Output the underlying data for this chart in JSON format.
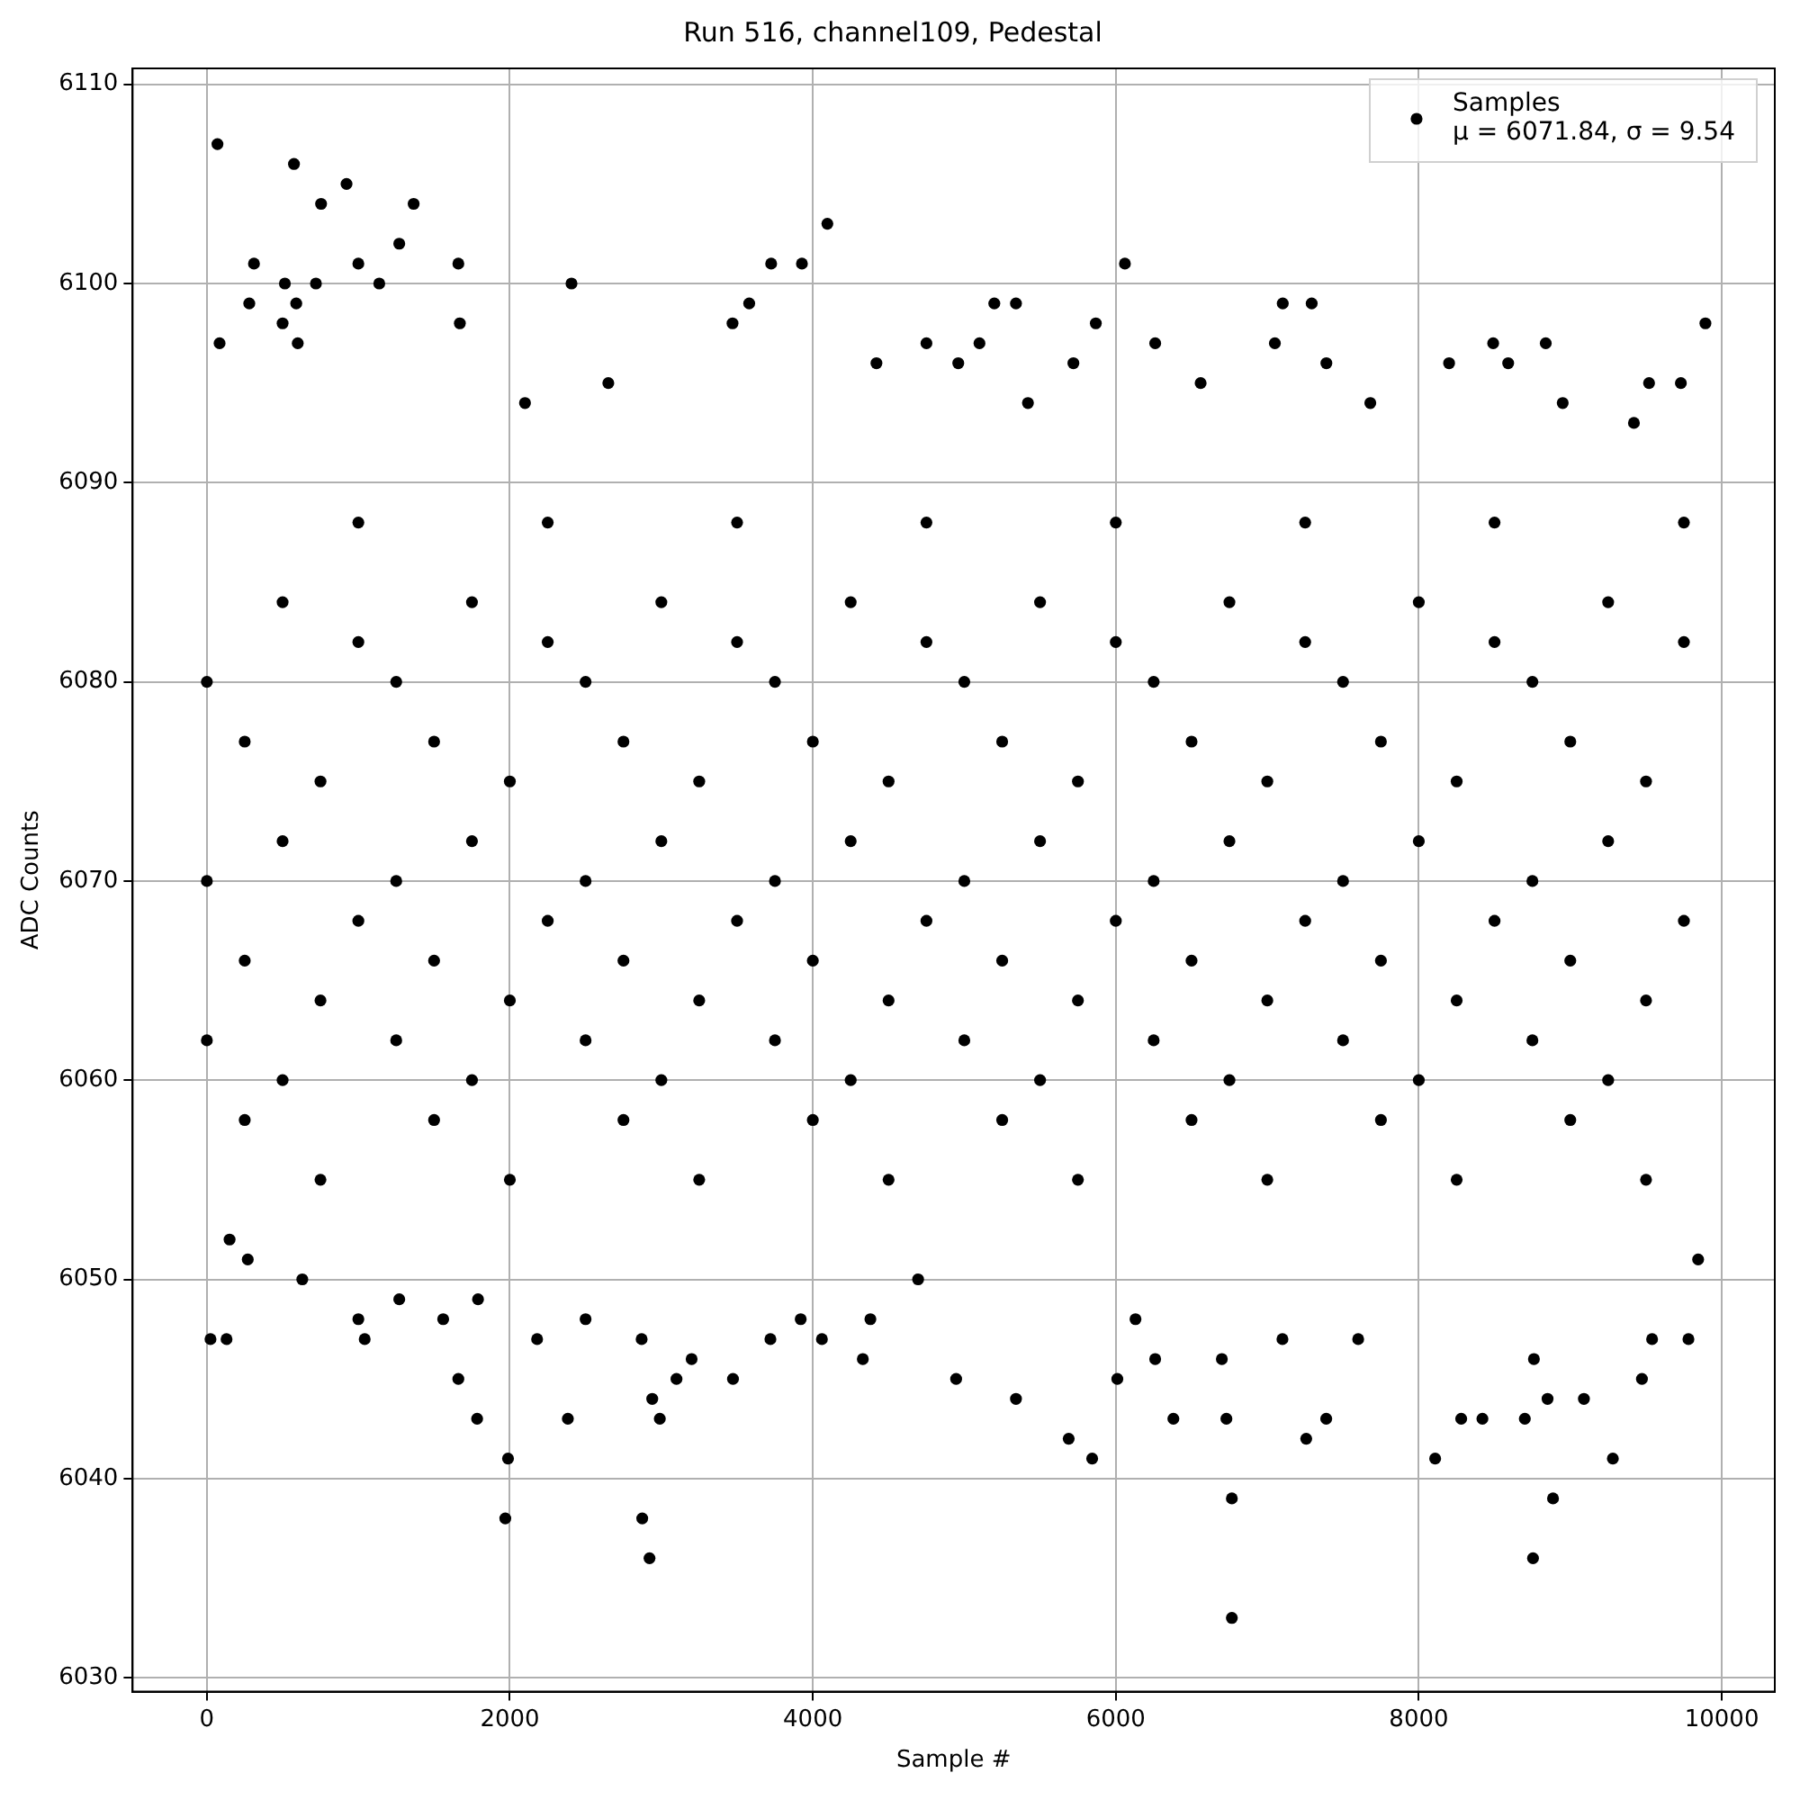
{
  "chart_data": {
    "type": "scatter",
    "title": "Run 516, channel109, Pedestal",
    "xlabel": "Sample #",
    "ylabel": "ADC Counts",
    "xlim": [
      -490,
      10350
    ],
    "xticks": [
      0,
      2000,
      4000,
      6000,
      8000,
      10000
    ],
    "ylim": [
      6029.3,
      6110.8
    ],
    "yticks": [
      6030,
      6040,
      6050,
      6060,
      6070,
      6080,
      6090,
      6100,
      6110
    ],
    "grid": true,
    "legend": "top right",
    "marker": "circle",
    "series": [
      {
        "name": "Samples\nμ = 6071.84, σ = 9.54",
        "color": "#000000",
        "x": [
          70,
          84,
          311,
          280,
          515,
          500,
          575,
          590,
          600,
          754,
          720,
          922,
          1000,
          1138,
          1270,
          1365,
          1660,
          1670,
          2407,
          2100,
          2650,
          3470,
          3580,
          3725,
          3928,
          4096,
          4420,
          4750,
          4960,
          5100,
          5198,
          5341,
          5420,
          5720,
          5868,
          6060,
          6260,
          6560,
          7050,
          7102,
          7293,
          7390,
          7680,
          8200,
          8491,
          8590,
          8838,
          8950,
          9420,
          9520,
          9892,
          9730,
          24,
          130,
          150,
          270,
          630,
          1000,
          1042,
          1270,
          1560,
          1660,
          1784,
          1790,
          1970,
          1988,
          2180,
          2383,
          2500,
          2870,
          2874,
          2922,
          2940,
          2990,
          3100,
          3200,
          3473,
          3720,
          3920,
          4060,
          4330,
          4380,
          4695,
          4946,
          5341,
          5689,
          5844,
          6010,
          6130,
          6260,
          6380,
          6700,
          6766,
          6766,
          6730,
          7100,
          7257,
          7389,
          7600,
          8108,
          8280,
          8420,
          8700,
          8754,
          8760,
          8886,
          8850,
          9090,
          9281,
          9473,
          9540,
          9780,
          9844,
          0,
          0,
          0,
          250,
          250,
          250,
          500,
          500,
          500,
          750,
          750,
          750,
          1000,
          1000,
          1000,
          1250,
          1250,
          1250,
          1500,
          1500,
          1500,
          1750,
          1750,
          1750,
          2000,
          2000,
          2000,
          2250,
          2250,
          2250,
          2500,
          2500,
          2500,
          2750,
          2750,
          2750,
          3000,
          3000,
          3000,
          3250,
          3250,
          3250,
          3500,
          3500,
          3500,
          3750,
          3750,
          3750,
          4000,
          4000,
          4000,
          4250,
          4250,
          4250,
          4500,
          4500,
          4500,
          4750,
          4750,
          4750,
          5000,
          5000,
          5000,
          5250,
          5250,
          5250,
          5500,
          5500,
          5500,
          5750,
          5750,
          5750,
          6000,
          6000,
          6000,
          6250,
          6250,
          6250,
          6500,
          6500,
          6500,
          6750,
          6750,
          6750,
          7000,
          7000,
          7000,
          7250,
          7250,
          7250,
          7500,
          7500,
          7500,
          7750,
          7750,
          7750,
          8000,
          8000,
          8000,
          8250,
          8250,
          8250,
          8500,
          8500,
          8500,
          8750,
          8750,
          8750,
          9000,
          9000,
          9000,
          9250,
          9250,
          9250,
          9500,
          9500,
          9500,
          9750,
          9750,
          9750
        ],
        "values": [
          6107,
          6097,
          6101,
          6099,
          6100,
          6098,
          6106,
          6099,
          6097,
          6104,
          6100,
          6105,
          6101,
          6100,
          6102,
          6104,
          6101,
          6098,
          6100,
          6094,
          6095,
          6098,
          6099,
          6101,
          6101,
          6103,
          6096,
          6097,
          6096,
          6097,
          6099,
          6099,
          6094,
          6096,
          6098,
          6101,
          6097,
          6095,
          6097,
          6099,
          6099,
          6096,
          6094,
          6096,
          6097,
          6096,
          6097,
          6094,
          6093,
          6095,
          6098,
          6095,
          6047,
          6047,
          6052,
          6051,
          6050,
          6048,
          6047,
          6049,
          6048,
          6045,
          6043,
          6049,
          6038,
          6041,
          6047,
          6043,
          6048,
          6047,
          6038,
          6036,
          6044,
          6043,
          6045,
          6046,
          6045,
          6047,
          6048,
          6047,
          6046,
          6048,
          6050,
          6045,
          6044,
          6042,
          6041,
          6045,
          6048,
          6046,
          6043,
          6046,
          6039,
          6033,
          6043,
          6047,
          6042,
          6043,
          6047,
          6041,
          6043,
          6043,
          6043,
          6036,
          6046,
          6039,
          6044,
          6044,
          6041,
          6045,
          6047,
          6047,
          6051,
          6080,
          6070,
          6062,
          6077,
          6066,
          6058,
          6084,
          6072,
          6060,
          6075,
          6064,
          6055,
          6082,
          6068,
          6088,
          6080,
          6070,
          6062,
          6077,
          6066,
          6058,
          6084,
          6072,
          6060,
          6075,
          6064,
          6055,
          6082,
          6068,
          6088,
          6080,
          6070,
          6062,
          6077,
          6066,
          6058,
          6084,
          6072,
          6060,
          6075,
          6064,
          6055,
          6082,
          6068,
          6088,
          6080,
          6070,
          6062,
          6077,
          6066,
          6058,
          6084,
          6072,
          6060,
          6075,
          6064,
          6055,
          6082,
          6068,
          6088,
          6080,
          6070,
          6062,
          6077,
          6066,
          6058,
          6084,
          6072,
          6060,
          6075,
          6064,
          6055,
          6082,
          6068,
          6088,
          6080,
          6070,
          6062,
          6077,
          6066,
          6058,
          6084,
          6072,
          6060,
          6075,
          6064,
          6055,
          6082,
          6068,
          6088,
          6080,
          6070,
          6062,
          6077,
          6066,
          6058,
          6084,
          6072,
          6060,
          6075,
          6064,
          6055,
          6082,
          6068,
          6088,
          6080,
          6070,
          6062,
          6077,
          6066,
          6058,
          6084,
          6072,
          6060,
          6075,
          6064,
          6055,
          6082,
          6068,
          6088
        ]
      }
    ]
  }
}
